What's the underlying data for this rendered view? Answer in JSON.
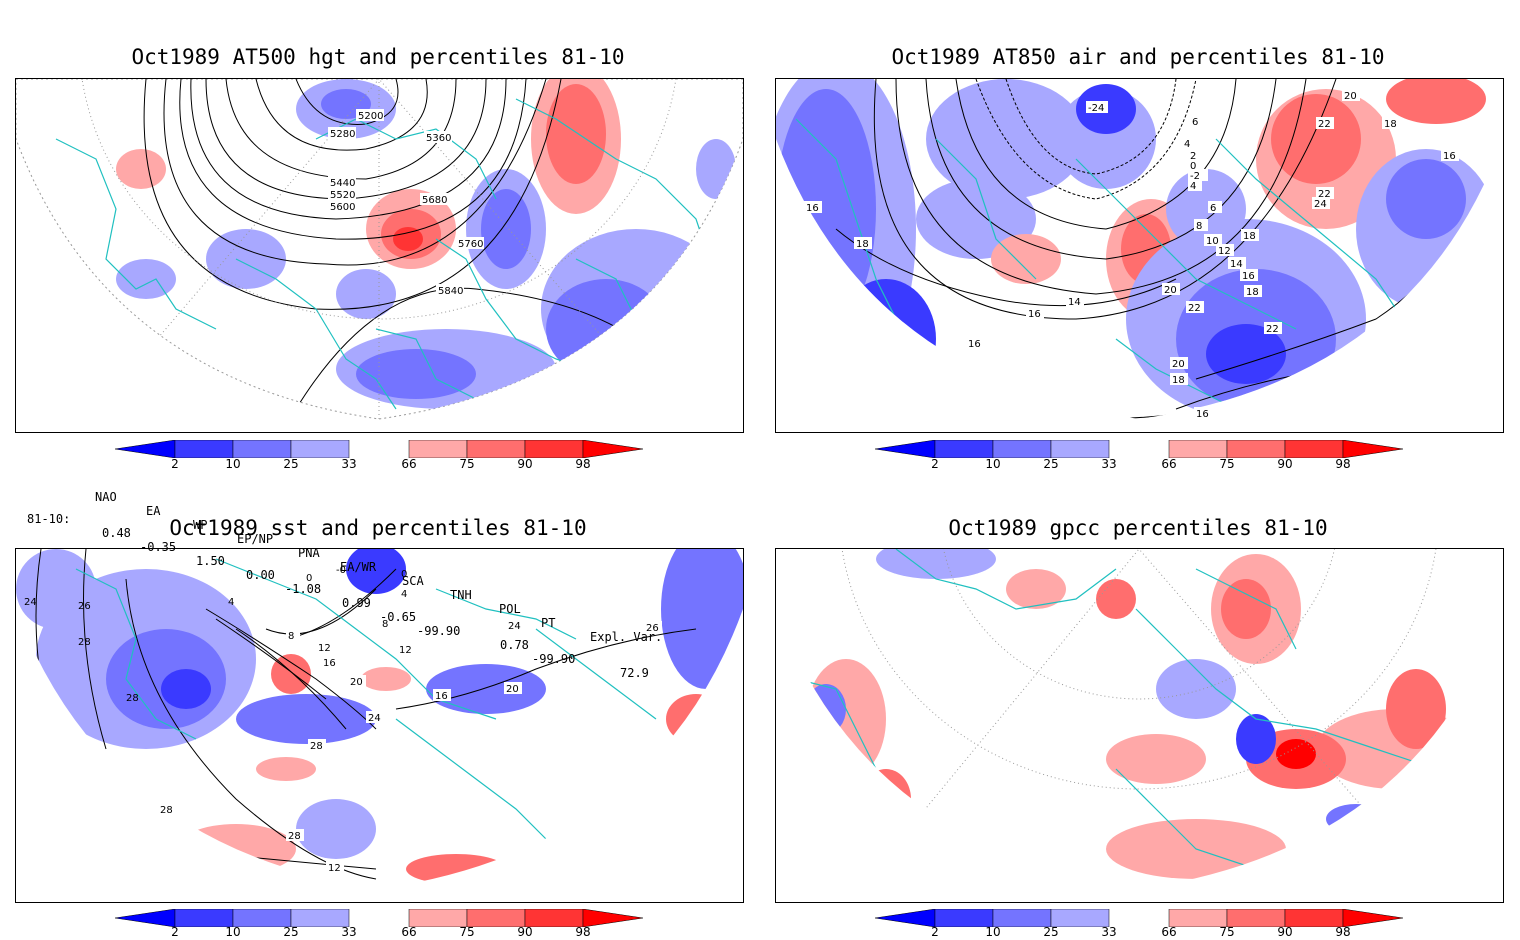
{
  "panels": [
    {
      "id": "p1",
      "title": "Oct1989 AT500 hgt and percentiles 81-10",
      "contour_labels": [
        "5200",
        "5280",
        "5360",
        "5440",
        "5520",
        "5600",
        "5680",
        "5760",
        "5840"
      ]
    },
    {
      "id": "p2",
      "title": "Oct1989 AT850 air and percentiles 81-10",
      "contour_labels": [
        "-24",
        "6",
        "4",
        "2",
        "0",
        "-2",
        "4",
        "6",
        "8",
        "10",
        "12",
        "14",
        "16",
        "18",
        "20",
        "22",
        "24",
        "16",
        "18",
        "22",
        "16",
        "14",
        "16",
        "20",
        "18",
        "16",
        "22",
        "18",
        "20",
        "22",
        "18",
        "16"
      ]
    },
    {
      "id": "p3",
      "title": "Oct1989 sst and percentiles 81-10",
      "contour_labels": [
        "24",
        "26",
        "28",
        "28",
        "28",
        "28",
        "12",
        "4",
        "8",
        "12",
        "16",
        "20",
        "24",
        "28",
        "0",
        "-0",
        "0",
        "4",
        "8",
        "12",
        "16",
        "20",
        "24",
        "26"
      ]
    },
    {
      "id": "p4",
      "title": "Oct1989 gpcc percentiles 81-10",
      "contour_labels": []
    }
  ],
  "colorbar": {
    "labels": [
      "2",
      "10",
      "25",
      "33",
      "66",
      "75",
      "90",
      "98"
    ],
    "colors": {
      "c2": "#0000ff",
      "c10": "#3a3aff",
      "c25": "#7474ff",
      "c33": "#a8a8ff",
      "c66": "#ffa8a8",
      "c75": "#ff6e6e",
      "c90": "#ff3434",
      "c98": "#ff0000"
    }
  },
  "indices": {
    "headers": [
      "NAO",
      "EA",
      "WP",
      "EP/NP",
      "PNA",
      "EA/WR",
      "SCA",
      "TNH",
      "POL",
      "PT",
      "Expl. Var."
    ],
    "row_label": "81-10:",
    "values": [
      "0.48",
      "-0.35",
      "1.50",
      "0.00",
      "-1.08",
      "0.99",
      "-0.65",
      "-99.90",
      "0.78",
      "-99.90",
      "72.9"
    ]
  },
  "map_colors": {
    "coastline": "#20c0c0",
    "contour": "#000000",
    "grid": "#999999"
  }
}
